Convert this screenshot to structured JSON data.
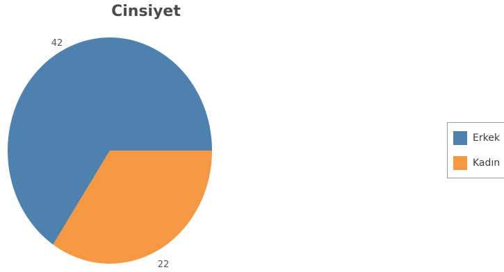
{
  "chart_data": {
    "type": "pie",
    "title": "Cinsiyet",
    "categories": [
      "Erkek",
      "Kadın"
    ],
    "values": [
      42,
      22
    ],
    "colors": [
      "#4e81ad",
      "#f59842"
    ],
    "legend_position": "right"
  }
}
